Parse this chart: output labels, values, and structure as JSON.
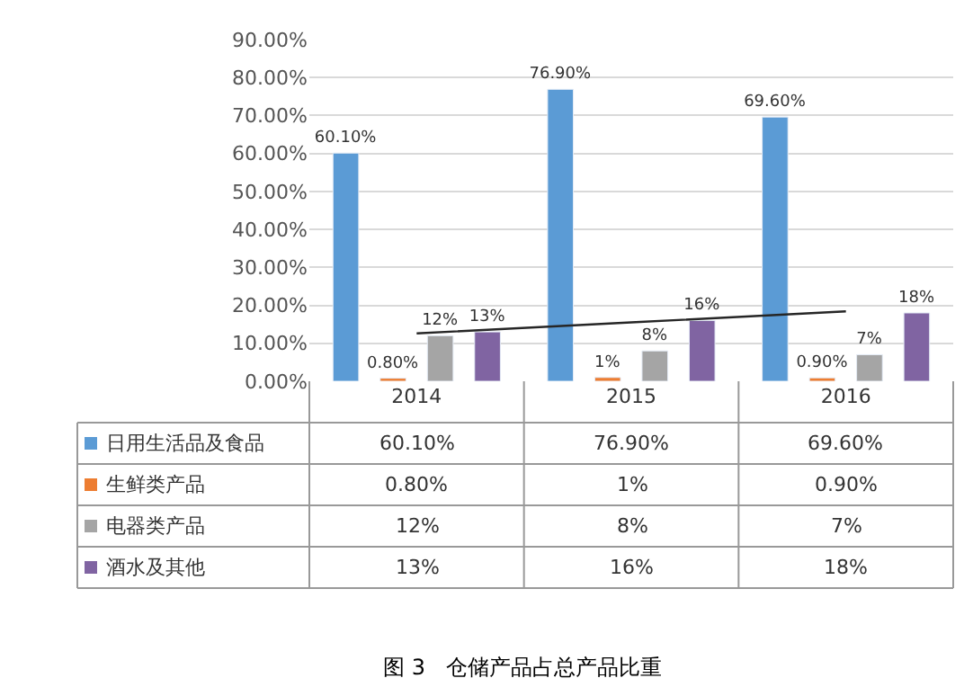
{
  "chart_data": {
    "type": "bar",
    "title": "图 3   仓储产品占总产品比重",
    "categories": [
      "2014",
      "2015",
      "2016"
    ],
    "series": [
      {
        "name": "日用生活品及食品",
        "color": "#5b9bd5",
        "values": [
          60.1,
          76.9,
          69.6
        ],
        "value_labels": [
          "60.10%",
          "76.90%",
          "69.60%"
        ]
      },
      {
        "name": "生鲜类产品",
        "color": "#ed7d31",
        "values": [
          0.8,
          1,
          0.9
        ],
        "value_labels": [
          "0.80%",
          "1%",
          "0.90%"
        ]
      },
      {
        "name": "电器类产品",
        "color": "#a5a5a5",
        "values": [
          12,
          8,
          7
        ],
        "value_labels": [
          "12%",
          "8%",
          "7%"
        ]
      },
      {
        "name": "酒水及其他",
        "color": "#8064a2",
        "values": [
          13,
          16,
          18
        ],
        "value_labels": [
          "13%",
          "16%",
          "18%"
        ]
      },
      {
        "type": "line",
        "color": "#262626",
        "values": [
          12.6,
          15.5,
          18.4
        ]
      }
    ],
    "ylim": [
      0,
      90
    ],
    "yticks": [
      {
        "value": 0,
        "label": "0.00%"
      },
      {
        "value": 10,
        "label": "10.00%"
      },
      {
        "value": 20,
        "label": "20.00%"
      },
      {
        "value": 30,
        "label": "30.00%"
      },
      {
        "value": 40,
        "label": "40.00%"
      },
      {
        "value": 50,
        "label": "50.00%"
      },
      {
        "value": 60,
        "label": "60.00%"
      },
      {
        "value": 70,
        "label": "70.00%"
      },
      {
        "value": 80,
        "label": "80.00%"
      },
      {
        "value": 90,
        "label": "90.00%"
      }
    ],
    "grid": "y",
    "legend": "bottom"
  }
}
